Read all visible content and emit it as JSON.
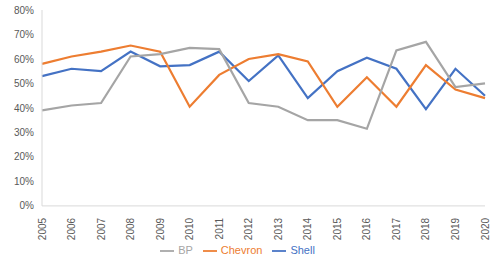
{
  "chart_data": {
    "type": "line",
    "categories": [
      "2005",
      "2006",
      "2007",
      "2008",
      "2009",
      "2010",
      "2011",
      "2012",
      "2013",
      "2014",
      "2015",
      "2016",
      "2017",
      "2018",
      "2019",
      "2020"
    ],
    "series": [
      {
        "name": "Shell",
        "color": "#4472c4",
        "values": [
          53,
          56,
          55,
          63,
          57,
          57.5,
          63,
          51,
          61.5,
          44,
          55,
          60.5,
          56,
          39.5,
          56,
          45
        ]
      },
      {
        "name": "Chevron",
        "color": "#ed7d31",
        "values": [
          58,
          61,
          63,
          65.5,
          63,
          40.5,
          53.5,
          60,
          62,
          59,
          40.5,
          52.5,
          40.5,
          57.5,
          47.5,
          44
        ]
      },
      {
        "name": "BP",
        "color": "#a5a5a5",
        "values": [
          39,
          41,
          42,
          61,
          62,
          64.5,
          64,
          42,
          40.5,
          35,
          35,
          31.5,
          63.5,
          67,
          48.5,
          50
        ]
      }
    ],
    "ylim": [
      0,
      80
    ],
    "yticks": [
      {
        "value": 0,
        "label": "0%"
      },
      {
        "value": 10,
        "label": "10%"
      },
      {
        "value": 20,
        "label": "20%"
      },
      {
        "value": 30,
        "label": "30%"
      },
      {
        "value": 40,
        "label": "40%"
      },
      {
        "value": 50,
        "label": "50%"
      },
      {
        "value": 60,
        "label": "60%"
      },
      {
        "value": 70,
        "label": "70%"
      },
      {
        "value": 80,
        "label": "80%"
      }
    ],
    "grid": false,
    "legend": "bottom"
  }
}
